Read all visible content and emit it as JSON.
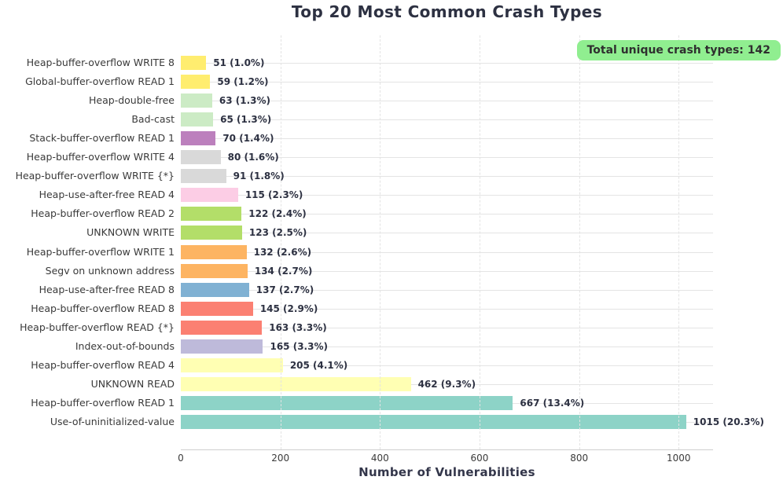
{
  "chart_data": {
    "type": "bar",
    "orientation": "horizontal",
    "title": "Top 20 Most Common Crash Types",
    "xlabel": "Number of Vulnerabilities",
    "annotation": {
      "label": "Total unique crash types: 142",
      "bg_color": "#90ee90"
    },
    "xlim": [
      0,
      1069
    ],
    "xticks": [
      0,
      200,
      400,
      600,
      800,
      1000
    ],
    "grid": true,
    "legend": false,
    "categories": [
      "Heap-buffer-overflow WRITE 8",
      "Global-buffer-overflow READ 1",
      "Heap-double-free",
      "Bad-cast",
      "Stack-buffer-overflow READ 1",
      "Heap-buffer-overflow WRITE 4",
      "Heap-buffer-overflow WRITE {*}",
      "Heap-use-after-free READ 4",
      "Heap-buffer-overflow READ 2",
      "UNKNOWN WRITE",
      "Heap-buffer-overflow WRITE 1",
      "Segv on unknown address",
      "Heap-use-after-free READ 8",
      "Heap-buffer-overflow READ 8",
      "Heap-buffer-overflow READ {*}",
      "Index-out-of-bounds",
      "Heap-buffer-overflow READ 4",
      "UNKNOWN READ",
      "Heap-buffer-overflow READ 1",
      "Use-of-uninitialized-value"
    ],
    "values": [
      51,
      59,
      63,
      65,
      70,
      80,
      91,
      115,
      122,
      123,
      132,
      134,
      137,
      145,
      163,
      165,
      205,
      462,
      667,
      1015
    ],
    "value_labels": [
      "51 (1.0%)",
      "59 (1.2%)",
      "63 (1.3%)",
      "65 (1.3%)",
      "70 (1.4%)",
      "80 (1.6%)",
      "91 (1.8%)",
      "115 (2.3%)",
      "122 (2.4%)",
      "123 (2.5%)",
      "132 (2.6%)",
      "134 (2.7%)",
      "137 (2.7%)",
      "145 (2.9%)",
      "163 (3.3%)",
      "165 (3.3%)",
      "205 (4.1%)",
      "462 (9.3%)",
      "667 (13.4%)",
      "1015 (20.3%)"
    ],
    "bar_colors": [
      "#ffed6f",
      "#ffed6f",
      "#ccebc5",
      "#ccebc5",
      "#bc80bd",
      "#d9d9d9",
      "#d9d9d9",
      "#fccde5",
      "#b3de69",
      "#b3de69",
      "#fdb462",
      "#fdb462",
      "#80b1d3",
      "#fb8072",
      "#fb8072",
      "#bebada",
      "#ffffb3",
      "#ffffb3",
      "#8dd3c7",
      "#8dd3c7"
    ]
  },
  "colors": {
    "background": "#ffffff",
    "title_text": "#2d3142",
    "tick_text": "#3b3b3b",
    "grid": "#e4e4e4",
    "annotation_bg": "#90ee90"
  }
}
